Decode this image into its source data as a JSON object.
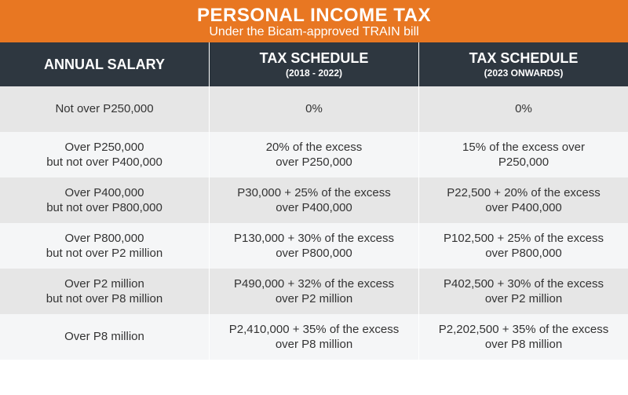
{
  "header": {
    "title": "PERSONAL INCOME TAX",
    "subtitle": "Under the Bicam-approved TRAIN bill",
    "bg_color": "#e87722",
    "text_color": "#ffffff"
  },
  "columns": [
    {
      "main": "ANNUAL SALARY",
      "sub": ""
    },
    {
      "main": "TAX SCHEDULE",
      "sub": "(2018 - 2022)"
    },
    {
      "main": "TAX SCHEDULE",
      "sub": "(2023 ONWARDS)"
    }
  ],
  "column_header": {
    "bg_color": "#2e3740",
    "text_color": "#ffffff"
  },
  "row_colors": {
    "odd": "#e6e6e6",
    "even": "#f5f6f7"
  },
  "rows": [
    {
      "salary": [
        "Not over P250,000"
      ],
      "t2018": [
        "0%"
      ],
      "t2023": [
        "0%"
      ]
    },
    {
      "salary": [
        "Over P250,000",
        "but not over P400,000"
      ],
      "t2018": [
        "20% of the excess",
        "over P250,000"
      ],
      "t2023": [
        "15% of the excess over",
        "P250,000"
      ]
    },
    {
      "salary": [
        "Over P400,000",
        "but not over P800,000"
      ],
      "t2018": [
        "P30,000 + 25% of the excess",
        "over P400,000"
      ],
      "t2023": [
        "P22,500 + 20% of the excess",
        "over P400,000"
      ]
    },
    {
      "salary": [
        "Over P800,000",
        "but not over P2 million"
      ],
      "t2018": [
        "P130,000 + 30% of the excess",
        "over P800,000"
      ],
      "t2023": [
        "P102,500 + 25% of the excess",
        "over P800,000"
      ]
    },
    {
      "salary": [
        "Over P2 million",
        "but not over P8 million"
      ],
      "t2018": [
        "P490,000 + 32% of the excess",
        "over P2 million"
      ],
      "t2023": [
        "P402,500 + 30% of the excess",
        "over P2 million"
      ]
    },
    {
      "salary": [
        "Over P8 million"
      ],
      "t2018": [
        "P2,410,000 + 35% of the excess",
        "over P8 million"
      ],
      "t2023": [
        "P2,202,500 + 35% of the excess",
        "over P8 million"
      ]
    }
  ]
}
